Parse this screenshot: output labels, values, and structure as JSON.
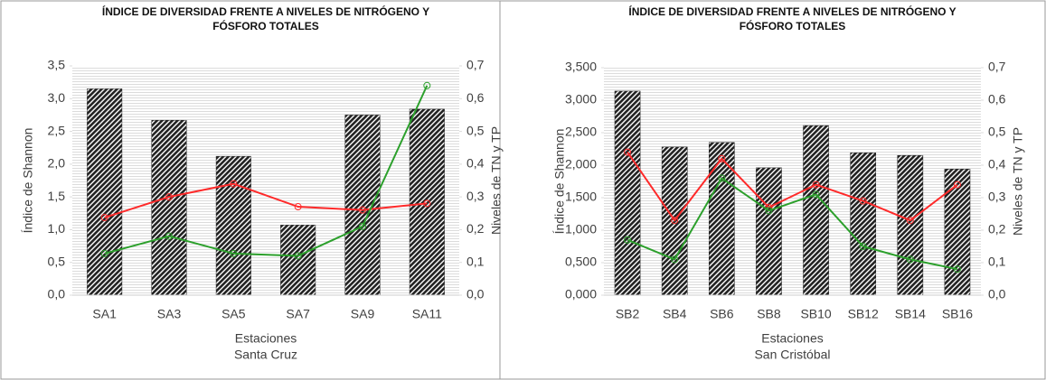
{
  "chart_data": [
    {
      "type": "bar_line",
      "title": [
        "ÍNDICE DE DIVERSIDAD  FRENTE A NIVELES DE NITRÓGENO Y",
        "FÓSFORO TOTALES"
      ],
      "ylabel": "Índice de Shannon",
      "y2label": "Niveles de TN y TP",
      "xlabel": [
        "Estaciones",
        "Santa Cruz"
      ],
      "categories": [
        "SA1",
        "SA3",
        "SA5",
        "SA7",
        "SA9",
        "SA11"
      ],
      "series": [
        {
          "type": "bar",
          "color": "#222222",
          "values": [
            3.15,
            2.67,
            2.12,
            1.07,
            2.75,
            2.84
          ]
        },
        {
          "type": "line",
          "axis": "y2",
          "color": "#ff2a2a",
          "values": [
            0.237,
            0.3,
            0.34,
            0.27,
            0.26,
            0.28
          ]
        },
        {
          "type": "line",
          "axis": "y2",
          "color": "#2ca02c",
          "values": [
            0.127,
            0.18,
            0.127,
            0.12,
            0.21,
            0.64
          ]
        }
      ],
      "ylim": [
        0,
        3.5
      ],
      "yticks": [
        {
          "value": 0,
          "label": "0,0"
        },
        {
          "value": 0.5,
          "label": "0,5"
        },
        {
          "value": 1,
          "label": "1,0"
        },
        {
          "value": 1.5,
          "label": "1,5"
        },
        {
          "value": 2,
          "label": "2,0"
        },
        {
          "value": 2.5,
          "label": "2,5"
        },
        {
          "value": 3,
          "label": "3,0"
        },
        {
          "value": 3.5,
          "label": "3,5"
        }
      ],
      "y2lim": [
        0,
        0.7
      ],
      "y2ticks": [
        {
          "value": 0,
          "label": "0,0"
        },
        {
          "value": 0.1,
          "label": "0,1"
        },
        {
          "value": 0.2,
          "label": "0,2"
        },
        {
          "value": 0.3,
          "label": "0,3"
        },
        {
          "value": 0.4,
          "label": "0,4"
        },
        {
          "value": 0.5,
          "label": "0,5"
        },
        {
          "value": 0.6,
          "label": "0,6"
        },
        {
          "value": 0.7,
          "label": "0,7"
        }
      ]
    },
    {
      "type": "bar_line",
      "title": [
        "ÍNDICE DE DIVERSIDAD FRENTE A NIVELES DE NITRÓGENO Y",
        "FÓSFORO TOTALES"
      ],
      "ylabel": "Índice de Shannon",
      "y2label": "Niveles de TN y TP",
      "xlabel": [
        "Estaciones",
        "San Cristóbal"
      ],
      "categories": [
        "SB2",
        "SB4",
        "SB6",
        "SB8",
        "SB10",
        "SB12",
        "SB14",
        "SB16"
      ],
      "series": [
        {
          "type": "bar",
          "color": "#222222",
          "values": [
            3.14,
            2.28,
            2.35,
            1.96,
            2.61,
            2.19,
            2.15,
            1.94
          ]
        },
        {
          "type": "line",
          "axis": "y2",
          "color": "#ff2a2a",
          "values": [
            0.44,
            0.23,
            0.42,
            0.27,
            0.34,
            0.29,
            0.23,
            0.34
          ]
        },
        {
          "type": "line",
          "axis": "y2",
          "color": "#2ca02c",
          "values": [
            0.17,
            0.11,
            0.36,
            0.26,
            0.31,
            0.15,
            0.11,
            0.08
          ]
        }
      ],
      "ylim": [
        0,
        3.5
      ],
      "yticks": [
        {
          "value": 0,
          "label": "0,000"
        },
        {
          "value": 0.5,
          "label": "0,500"
        },
        {
          "value": 1,
          "label": "1,000"
        },
        {
          "value": 1.5,
          "label": "1,500"
        },
        {
          "value": 2,
          "label": "2,000"
        },
        {
          "value": 2.5,
          "label": "2,500"
        },
        {
          "value": 3,
          "label": "3,000"
        },
        {
          "value": 3.5,
          "label": "3,500"
        }
      ],
      "y2lim": [
        0,
        0.7
      ],
      "y2ticks": [
        {
          "value": 0,
          "label": "0,0"
        },
        {
          "value": 0.1,
          "label": "0,1"
        },
        {
          "value": 0.2,
          "label": "0,2"
        },
        {
          "value": 0.3,
          "label": "0,3"
        },
        {
          "value": 0.4,
          "label": "0,4"
        },
        {
          "value": 0.5,
          "label": "0,5"
        },
        {
          "value": 0.6,
          "label": "0,6"
        },
        {
          "value": 0.7,
          "label": "0,7"
        }
      ]
    }
  ]
}
